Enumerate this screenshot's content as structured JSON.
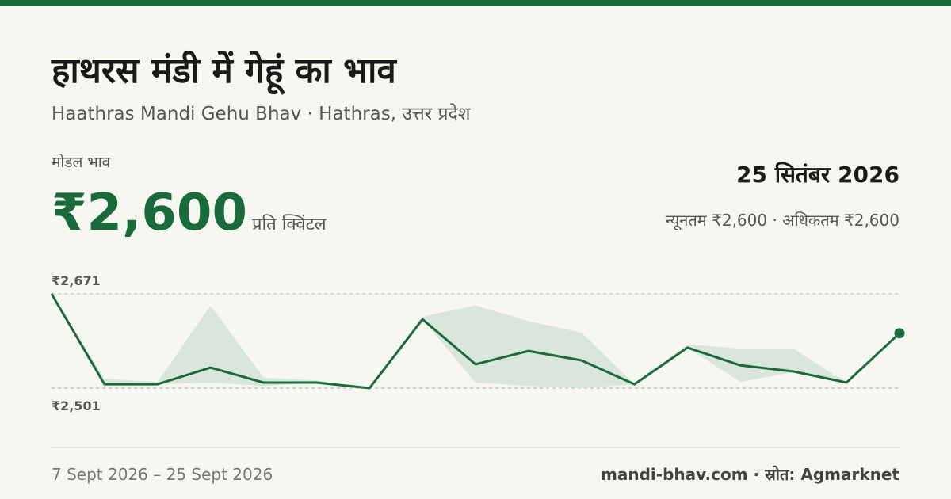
{
  "header": {
    "title": "हाथरस मंडी में गेहूं का भाव",
    "subtitle": "Haathras Mandi Gehu Bhav · Hathras, उत्तर प्रदेश",
    "price_label": "मोडल भाव",
    "price": "₹2,600",
    "unit": "प्रति क्विंटल",
    "date": "25 सितंबर 2026",
    "range": "न्यूनतम ₹2,600 · अधिकतम ₹2,600"
  },
  "footer": {
    "period": "7 Sept 2026 – 25 Sept 2026",
    "source": "mandi-bhav.com · स्रोत: Agmarknet"
  },
  "chart_data": {
    "type": "line",
    "color": "#1a6b3c",
    "band_color": "#dae5dc",
    "values": [
      2671,
      2508,
      2508,
      2538,
      2511,
      2511,
      2501,
      2625,
      2544,
      2568,
      2551,
      2508,
      2574,
      2542,
      2531,
      2511,
      2600
    ],
    "max_values": [
      2671,
      2518,
      2512,
      2650,
      2520,
      2515,
      2501,
      2630,
      2650,
      2622,
      2601,
      2508,
      2580,
      2572,
      2572,
      2511,
      2600
    ],
    "min_values": [
      2671,
      2508,
      2508,
      2511,
      2505,
      2511,
      2501,
      2625,
      2511,
      2505,
      2501,
      2508,
      2574,
      2512,
      2530,
      2511,
      2600
    ],
    "ylim": [
      2501,
      2671
    ],
    "yticks": [
      {
        "value": 2671,
        "label": "₹2,671"
      },
      {
        "value": 2501,
        "label": "₹2,501"
      }
    ],
    "grid": true
  }
}
